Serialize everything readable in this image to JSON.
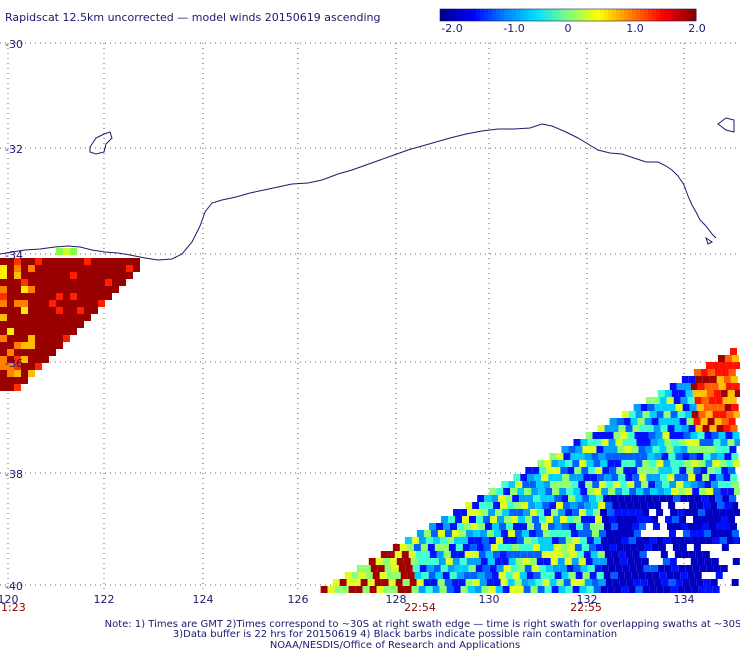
{
  "title": "Rapidscat 12.5km uncorrected — model winds 20150619 ascending",
  "colorbar": {
    "ticks": [
      "-2.0",
      "-1.0",
      "0",
      "1.0",
      "2.0"
    ],
    "range": [
      -2.0,
      2.0
    ],
    "colors": [
      "#00008b",
      "#0000ff",
      "#0080ff",
      "#00e0ff",
      "#80ff80",
      "#ffff00",
      "#ff8000",
      "#ff0000",
      "#8b0000"
    ]
  },
  "axes": {
    "lon_labels": [
      "120",
      "122",
      "124",
      "126",
      "128",
      "130",
      "132",
      "134"
    ],
    "lat_labels": [
      "-30",
      "-32",
      "-34",
      "-36",
      "-38",
      "-40"
    ],
    "lon_range": [
      120,
      135
    ],
    "lat_range": [
      -40,
      -30
    ],
    "grid": "dotted"
  },
  "times": [
    "1:23",
    "22:54",
    "22:55"
  ],
  "notes": [
    "Note: 1) Times are GMT 2)Times correspond to ~30S at right swath edge — time is right swath for overlapping swaths at ~30S",
    "3)Data buffer is 22 hrs for 20150619 4) Black barbs indicate possible rain contamination",
    "NOAA/NESDIS/Office of Research and Applications"
  ],
  "features": {
    "coastline": "southern-australia-coastline",
    "swaths": [
      "west-swath-high-values",
      "southeast-swath-mixed-values"
    ]
  }
}
